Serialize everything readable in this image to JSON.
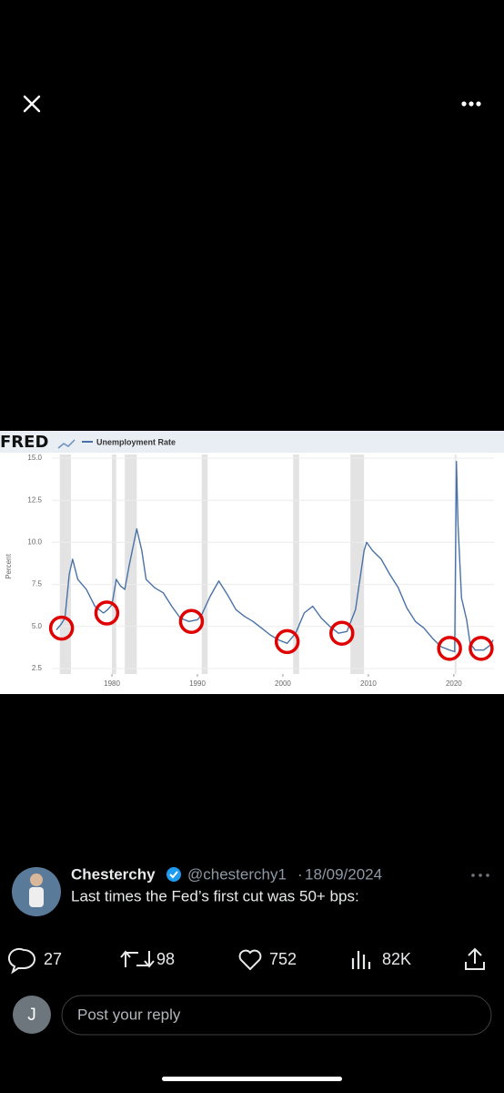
{
  "image": {
    "chart_data": {
      "type": "line",
      "source": "FRED",
      "ylabel": "Percent",
      "x": [
        1973.5,
        1974.0,
        1974.5,
        1975.0,
        1975.4,
        1976,
        1977,
        1978,
        1979,
        1979.5,
        1980.0,
        1980.5,
        1981.0,
        1981.5,
        1982.0,
        1982.9,
        1983.5,
        1984,
        1985,
        1986,
        1987,
        1988,
        1989,
        1990,
        1990.5,
        1991.5,
        1992.5,
        1993.5,
        1994.5,
        1995.5,
        1996.5,
        1997.5,
        1998.5,
        1999.5,
        2000.5,
        2001.5,
        2002.5,
        2003.5,
        2004.5,
        2005.5,
        2006.5,
        2007.5,
        2008.5,
        2009.5,
        2009.8,
        2010.5,
        2011.5,
        2012.5,
        2013.5,
        2014.5,
        2015.5,
        2016.5,
        2017.5,
        2018.5,
        2019.5,
        2020.1,
        2020.3,
        2020.5,
        2020.9,
        2021.5,
        2021.9,
        2022.5,
        2023.5,
        2024.3,
        2024.6
      ],
      "series": [
        {
          "name": "Unemployment Rate",
          "color": "#4a72a6",
          "values": [
            4.8,
            5.1,
            5.5,
            8.1,
            9.0,
            7.8,
            7.2,
            6.2,
            5.8,
            6.0,
            6.3,
            7.8,
            7.4,
            7.2,
            8.6,
            10.8,
            9.5,
            7.8,
            7.3,
            7.0,
            6.2,
            5.5,
            5.3,
            5.4,
            5.7,
            6.8,
            7.7,
            6.9,
            6.0,
            5.6,
            5.3,
            4.9,
            4.5,
            4.2,
            4.0,
            4.6,
            5.8,
            6.2,
            5.5,
            5.0,
            4.6,
            4.7,
            6.0,
            9.5,
            10.0,
            9.5,
            9.0,
            8.1,
            7.3,
            6.1,
            5.3,
            4.9,
            4.3,
            3.8,
            3.6,
            3.5,
            14.8,
            11.0,
            6.7,
            5.4,
            4.0,
            3.6,
            3.6,
            3.9,
            4.2
          ]
        }
      ],
      "recessions": [
        [
          1973.9,
          1975.2
        ],
        [
          1980.0,
          1980.5
        ],
        [
          1981.5,
          1982.9
        ],
        [
          1990.5,
          1991.2
        ],
        [
          2001.2,
          2001.9
        ],
        [
          2007.9,
          2009.5
        ],
        [
          2020.1,
          2020.3
        ]
      ],
      "highlights": {
        "color": "#e00000",
        "x": [
          1974.1,
          1979.4,
          1989.3,
          2000.5,
          2006.9,
          2019.5,
          2023.2
        ],
        "y": [
          4.9,
          5.8,
          5.3,
          4.1,
          4.6,
          3.7,
          3.7
        ]
      },
      "xlim": [
        1973.5,
        2024.7
      ],
      "ylim": [
        2.5,
        15
      ],
      "xticks": [
        1980,
        1990,
        2000,
        2010,
        2020
      ],
      "yticks": [
        2.5,
        {
          "value": 5,
          "label": "5.0"
        },
        7.5,
        {
          "value": 10,
          "label": "10.0"
        },
        12.5,
        {
          "value": 15,
          "label": "15.0"
        }
      ],
      "grid": true
    }
  },
  "tweet": {
    "name": "Chesterchy",
    "handle": "@chesterchy1",
    "separator": "·",
    "date": "18/09/2024",
    "text": "Last  times the Fed’s first cut was 50+ bps:",
    "stats": {
      "replies": 27,
      "retweets": 98,
      "likes": 752,
      "views": "82K"
    }
  },
  "reply": {
    "avatar_initial": "J",
    "placeholder": "Post your reply"
  }
}
